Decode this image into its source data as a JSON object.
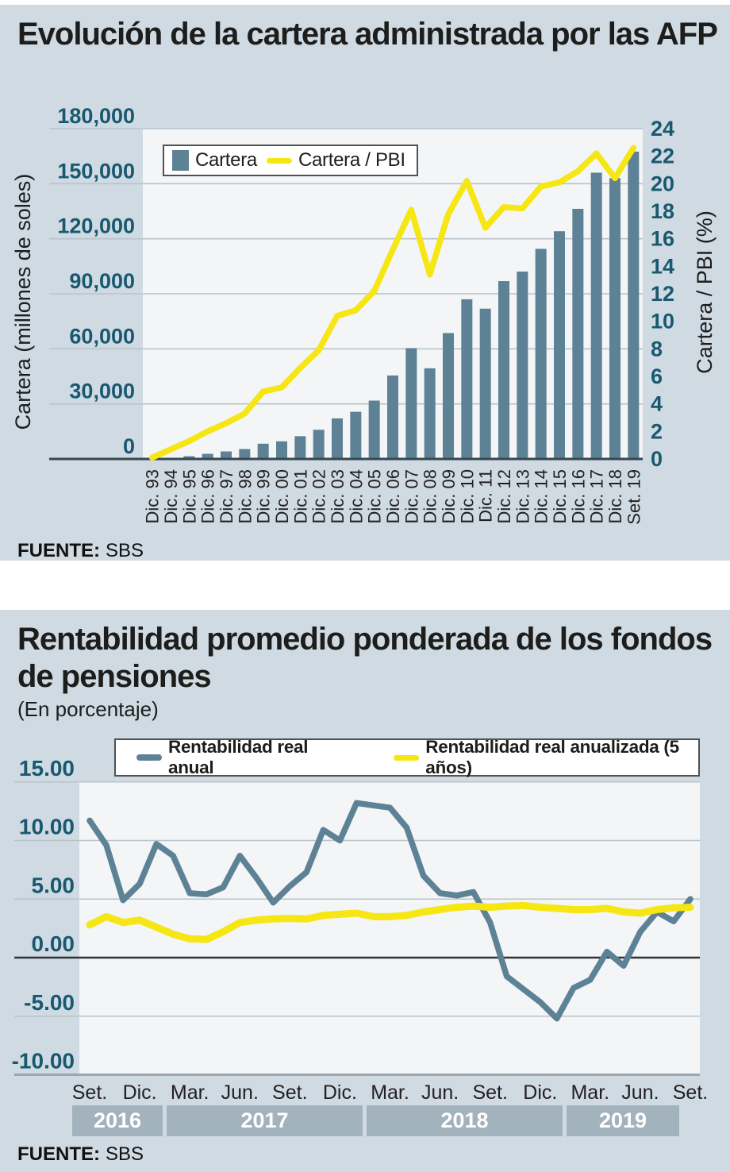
{
  "panel1": {
    "title": "Evolución de la cartera administrada por las AFP",
    "source_label": "FUENTE:",
    "source_value": "SBS"
  },
  "panel2": {
    "title": "Rentabilidad promedio ponderada de los fondos de pensiones",
    "subtitle": "(En porcentaje)",
    "source_label": "FUENTE:",
    "source_value": "SBS"
  },
  "colors": {
    "panel_background": "#cfdae3",
    "plot_background": "#f3f5f6",
    "bar_blue": "#5d8296",
    "line_yellow": "#f5e614",
    "axis_teal_text": "#19596f",
    "grid_gray": "#b9c3cb",
    "dark_axis_line": "#36474f",
    "zero_line": "#2e3338",
    "year_band_gray": "#a3b3be",
    "title_text": "#1d1d1b"
  },
  "chart_data": [
    {
      "type": "bar",
      "title": "Evolución de la cartera administrada por las AFP",
      "categories": [
        "Dic. 93",
        "Dic. 94",
        "Dic. 95",
        "Dic. 96",
        "Dic. 97",
        "Dic. 98",
        "Dic. 99",
        "Dic. 00",
        "Dic. 01",
        "Dic. 02",
        "Dic. 03",
        "Dic. 04",
        "Dic. 05",
        "Dic. 06",
        "Dic. 07",
        "Dic. 08",
        "Dic. 09",
        "Dic. 10",
        "Dic. 11",
        "Dic. 12",
        "Dic. 13",
        "Dic. 14",
        "Dic. 15",
        "Dic. 16",
        "Dic. 17",
        "Dic. 18",
        "Set. 19"
      ],
      "series": [
        {
          "name": "Cartera",
          "type": "bar",
          "axis": "left",
          "color": "#5d8296",
          "values": [
            100,
            600,
            1500,
            2800,
            4100,
            5400,
            8300,
            9600,
            12400,
            15900,
            22100,
            25700,
            31800,
            45500,
            60400,
            49400,
            68600,
            87000,
            81900,
            96900,
            102100,
            114500,
            124100,
            136300,
            156000,
            153000,
            167500
          ]
        },
        {
          "name": "Cartera / PBI",
          "type": "line",
          "axis": "right",
          "color": "#f5e614",
          "values": [
            0.1,
            0.7,
            1.3,
            2.0,
            2.6,
            3.3,
            4.9,
            5.2,
            6.6,
            7.9,
            10.4,
            10.8,
            12.2,
            15.2,
            18.1,
            13.4,
            17.8,
            20.2,
            16.8,
            18.3,
            18.2,
            19.8,
            20.1,
            20.9,
            22.2,
            20.4,
            22.6
          ]
        }
      ],
      "y_left": {
        "label": "Cartera (millones de soles)",
        "min": 0,
        "max": 180000,
        "tick_values": [
          0,
          30000,
          60000,
          90000,
          120000,
          150000,
          180000
        ],
        "tick_labels": [
          "0",
          "30,000",
          "60,000",
          "90,000",
          "120,000",
          "150,000",
          "180,000"
        ]
      },
      "y_right": {
        "label": "Cartera / PBI (%)",
        "min": 0,
        "max": 24,
        "tick_step": 2
      },
      "grid": true,
      "legend_position": "top-left"
    },
    {
      "type": "line",
      "title": "Rentabilidad promedio ponderada de los fondos de pensiones",
      "subtitle": "(En porcentaje)",
      "x_start": "Set. 2016",
      "x_freq": "monthly",
      "n_points": 37,
      "x_tick_labels": [
        "Set.",
        "Dic.",
        "Mar.",
        "Jun.",
        "Set.",
        "Dic.",
        "Mar.",
        "Jun.",
        "Set.",
        "Dic.",
        "Mar.",
        "Jun.",
        "Set."
      ],
      "x_tick_months": [
        0,
        3,
        6,
        9,
        12,
        15,
        18,
        21,
        24,
        27,
        30,
        33,
        36
      ],
      "years": [
        "2016",
        "2017",
        "2018",
        "2019"
      ],
      "year_bands": [
        {
          "label": "2016",
          "x_from": 91,
          "x_to": 205
        },
        {
          "label": "2017",
          "x_from": 210,
          "x_to": 457
        },
        {
          "label": "2018",
          "x_from": 462,
          "x_to": 709
        },
        {
          "label": "2019",
          "x_from": 714,
          "x_to": 856
        }
      ],
      "ylim": [
        -10,
        15
      ],
      "y_tick_values": [
        15,
        10,
        5,
        0,
        -5,
        -10
      ],
      "y_tick_labels": [
        "15.00",
        "10.00",
        "5.00",
        "0.00",
        "-5.00",
        "-10.00"
      ],
      "grid": true,
      "legend_position": "top",
      "series": [
        {
          "name": "Rentabilidad real anual",
          "color": "#5d8296",
          "values": [
            11.7,
            9.6,
            4.9,
            6.3,
            9.7,
            8.7,
            5.5,
            5.4,
            6.0,
            8.7,
            6.8,
            4.7,
            6.1,
            7.3,
            10.9,
            10.0,
            13.2,
            13.0,
            12.8,
            11.1,
            7.0,
            5.5,
            5.3,
            5.6,
            3.0,
            -1.6,
            -2.7,
            -3.8,
            -5.2,
            -2.6,
            -1.9,
            0.5,
            -0.7,
            2.2,
            3.9,
            3.1,
            5.0
          ]
        },
        {
          "name": "Rentabilidad real anualizada (5 años)",
          "color": "#f5e614",
          "values": [
            2.8,
            3.5,
            3.0,
            3.2,
            2.6,
            2.0,
            1.6,
            1.55,
            2.2,
            3.0,
            3.2,
            3.3,
            3.35,
            3.3,
            3.6,
            3.7,
            3.8,
            3.5,
            3.5,
            3.6,
            3.9,
            4.1,
            4.3,
            4.4,
            4.3,
            4.4,
            4.45,
            4.3,
            4.2,
            4.1,
            4.1,
            4.2,
            3.9,
            3.8,
            4.1,
            4.25,
            4.3
          ]
        }
      ]
    }
  ]
}
